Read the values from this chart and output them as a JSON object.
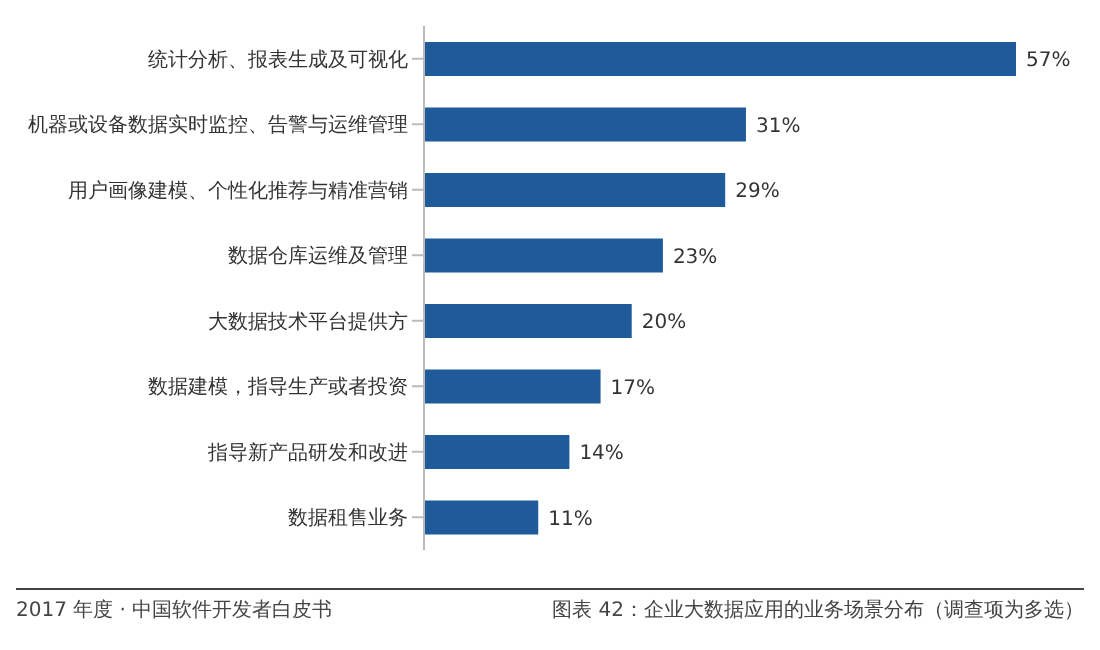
{
  "chart_data": {
    "type": "bar",
    "orientation": "horizontal",
    "categories": [
      "统计分析、报表生成及可视化",
      "机器或设备数据实时监控、告警与运维管理",
      "用户画像建模、个性化推荐与精准营销",
      "数据仓库运维及管理",
      "大数据技术平台提供方",
      "数据建模，指导生产或者投资",
      "指导新产品研发和改进",
      "数据租售业务"
    ],
    "values": [
      57,
      31,
      29,
      23,
      20,
      17,
      14,
      11
    ],
    "value_labels": [
      "57%",
      "31%",
      "29%",
      "23%",
      "20%",
      "17%",
      "14%",
      "11%"
    ],
    "color": "#1f5a9a",
    "grid": false,
    "legend": false,
    "annotations": [
      "2017 年度 · 中国软件开发者白皮书",
      "图表 42：企业大数据应用的业务场景分布（调查项为多选）"
    ]
  }
}
